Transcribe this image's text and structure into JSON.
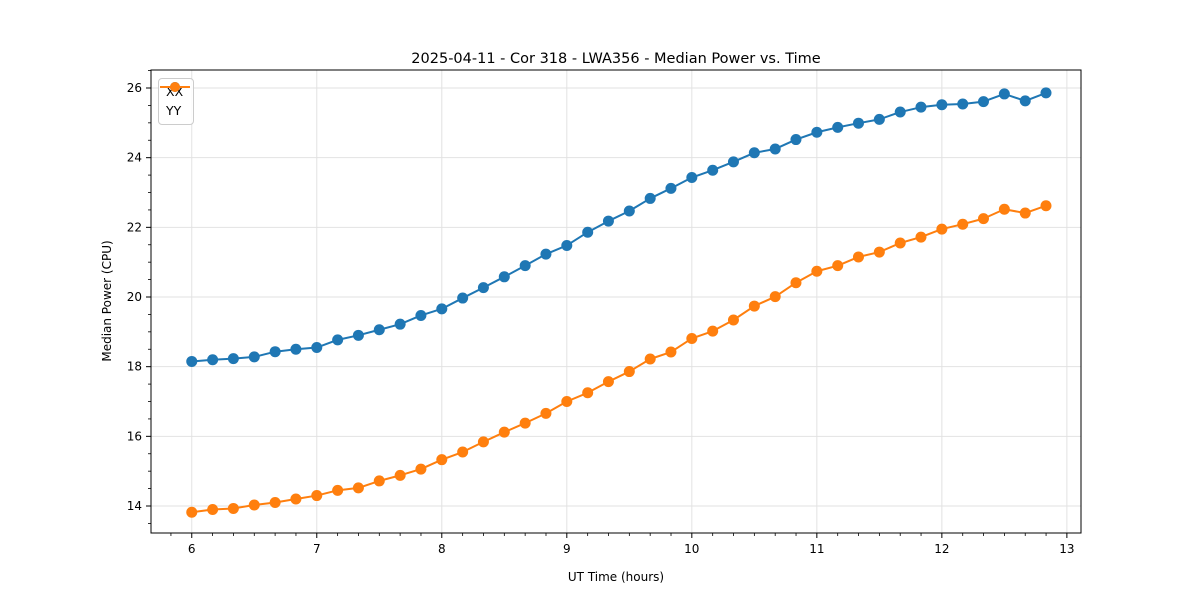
{
  "chart_data": {
    "type": "line",
    "title": "2025-04-11 - Cor 318 - LWA356 - Median Power vs. Time",
    "xlabel": "UT Time (hours)",
    "ylabel": "Median Power (CPU)",
    "xlim": [
      5.674,
      13.113
    ],
    "ylim": [
      13.225,
      26.517
    ],
    "xticks": [
      6,
      7,
      8,
      9,
      10,
      11,
      12,
      13
    ],
    "yticks": [
      14,
      16,
      18,
      20,
      22,
      24,
      26
    ],
    "x_minor_step": 0.16667,
    "y_minor_step": 0.5,
    "grid": true,
    "legend_position": "upper-left",
    "x": [
      6.0,
      6.167,
      6.333,
      6.5,
      6.667,
      6.833,
      7.0,
      7.167,
      7.333,
      7.5,
      7.667,
      7.833,
      8.0,
      8.167,
      8.333,
      8.5,
      8.667,
      8.833,
      9.0,
      9.167,
      9.333,
      9.5,
      9.667,
      9.833,
      10.0,
      10.167,
      10.333,
      10.5,
      10.667,
      10.833,
      11.0,
      11.167,
      11.333,
      11.5,
      11.667,
      11.833,
      12.0,
      12.167,
      12.333,
      12.5,
      12.667,
      12.833
    ],
    "series": [
      {
        "name": "XX",
        "color": "#1f77b4",
        "values": [
          18.15,
          18.2,
          18.23,
          18.28,
          18.43,
          18.5,
          18.55,
          18.77,
          18.9,
          19.06,
          19.22,
          19.47,
          19.66,
          19.97,
          20.27,
          20.58,
          20.9,
          21.23,
          21.48,
          21.86,
          22.18,
          22.47,
          22.83,
          23.12,
          23.43,
          23.64,
          23.88,
          24.14,
          24.25,
          24.52,
          24.73,
          24.87,
          24.99,
          25.1,
          25.31,
          25.45,
          25.52,
          25.54,
          25.61,
          25.83,
          25.63,
          25.86
        ]
      },
      {
        "name": "YY",
        "color": "#ff7f0e",
        "values": [
          13.82,
          13.9,
          13.93,
          14.03,
          14.1,
          14.2,
          14.3,
          14.45,
          14.52,
          14.72,
          14.88,
          15.06,
          15.33,
          15.55,
          15.84,
          16.12,
          16.38,
          16.66,
          17.0,
          17.25,
          17.57,
          17.86,
          18.22,
          18.42,
          18.81,
          19.02,
          19.34,
          19.74,
          20.01,
          20.41,
          20.74,
          20.9,
          21.15,
          21.29,
          21.55,
          21.72,
          21.95,
          22.09,
          22.25,
          22.52,
          22.41,
          22.62
        ]
      }
    ]
  },
  "colors": {
    "grid": "#e2e2e2",
    "axis": "#000000",
    "text": "#000000",
    "legend_border": "#cccccc"
  }
}
